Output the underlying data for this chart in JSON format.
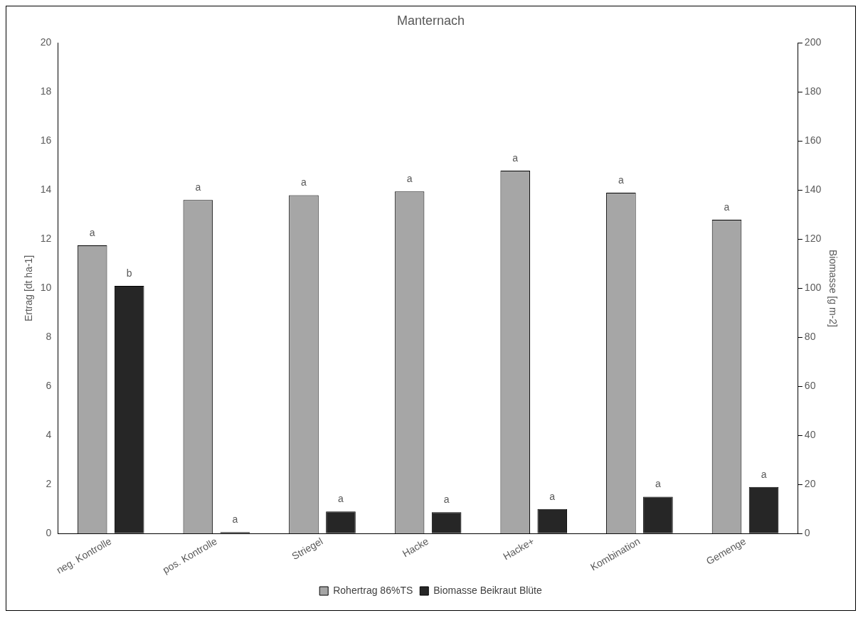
{
  "chart_data": {
    "type": "bar",
    "title": "Manternach",
    "ylabel": "Ertrag [dt ha-1]",
    "y2label": "Biomasse [g m-2]",
    "categories": [
      "neg. Kontrolle",
      "pos. Kontrolle",
      "Striegel",
      "Hacke",
      "Hacke+",
      "Kombination",
      "Gemenge"
    ],
    "series": [
      {
        "name": "Rohertrag 86%TS",
        "color": "#a6a6a6",
        "values": [
          11.75,
          13.6,
          13.8,
          13.95,
          14.8,
          13.9,
          12.8
        ],
        "value_labels": [
          "a",
          "a",
          "a",
          "a",
          "a",
          "a",
          "a"
        ]
      },
      {
        "name": "Biomasse Beikraut Blüte",
        "color": "#262626",
        "axis": "y2",
        "values": [
          101,
          0.6,
          9,
          8.7,
          10,
          15,
          19
        ],
        "value_labels": [
          "b",
          "a",
          "a",
          "a",
          "a",
          "a",
          "a"
        ]
      }
    ],
    "ylim": [
      0,
      20
    ],
    "yticks": [
      0,
      2,
      4,
      6,
      8,
      10,
      12,
      14,
      16,
      18,
      20
    ],
    "y2lim": [
      0,
      200
    ],
    "y2ticks": [
      0,
      20,
      40,
      60,
      80,
      100,
      120,
      140,
      160,
      180,
      200
    ],
    "grid": false,
    "legend": "bottom"
  }
}
